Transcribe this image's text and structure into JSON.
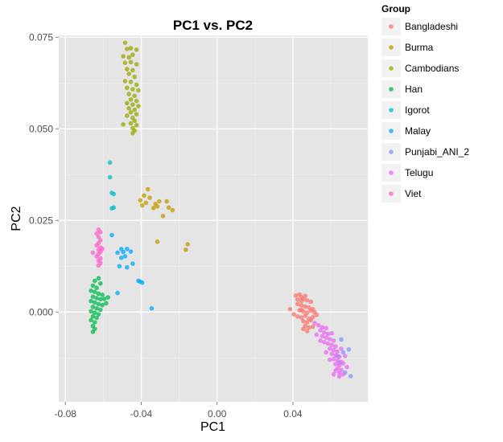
{
  "chart_data": {
    "type": "scatter",
    "title": "PC1 vs. PC2",
    "xlabel": "PC1",
    "ylabel": "PC2",
    "xlim": [
      -0.0835,
      0.0795
    ],
    "ylim": [
      -0.0245,
      0.0755
    ],
    "xticks": [
      -0.08,
      -0.04,
      0.0,
      0.04
    ],
    "xtick_labels": [
      "-0.08",
      "-0.04",
      "0.00",
      "0.04"
    ],
    "yticks": [
      0.0,
      0.025,
      0.05,
      0.075
    ],
    "ytick_labels": [
      "0.000",
      "0.025",
      "0.050",
      "0.075"
    ],
    "grid": true,
    "background": "#e5e5e5",
    "legend": {
      "title": "Group",
      "position": "right"
    },
    "series": [
      {
        "name": "Bangladeshi",
        "color": "#F8766D",
        "points": [
          [
            0.0415,
            0.0045
          ],
          [
            0.0435,
            0.0048
          ],
          [
            0.0445,
            0.0041
          ],
          [
            0.0465,
            0.0044
          ],
          [
            0.0425,
            0.0034
          ],
          [
            0.0445,
            0.003
          ],
          [
            0.0455,
            0.0036
          ],
          [
            0.0475,
            0.0032
          ],
          [
            0.0495,
            0.0028
          ],
          [
            0.0425,
            0.0022
          ],
          [
            0.0445,
            0.0018
          ],
          [
            0.0465,
            0.0015
          ],
          [
            0.0485,
            0.0012
          ],
          [
            0.0505,
            0.0008
          ],
          [
            0.0435,
            0.0005
          ],
          [
            0.0455,
            0.0002
          ],
          [
            0.0475,
            -0.0002
          ],
          [
            0.0495,
            0.0004
          ],
          [
            0.0515,
            -0.0001
          ],
          [
            0.0425,
            -0.0012
          ],
          [
            0.0445,
            -0.0015
          ],
          [
            0.0465,
            -0.001
          ],
          [
            0.0485,
            -0.0018
          ],
          [
            0.0505,
            -0.0014
          ],
          [
            0.0455,
            -0.0025
          ],
          [
            0.0475,
            -0.0028
          ],
          [
            0.0495,
            -0.0022
          ],
          [
            0.0465,
            -0.0038
          ],
          [
            0.0485,
            -0.0042
          ],
          [
            0.0475,
            -0.0052
          ],
          [
            0.0385,
            0.0008
          ],
          [
            0.0405,
            -0.0006
          ],
          [
            0.0505,
            -0.004
          ],
          [
            0.0525,
            -0.0008
          ],
          [
            0.0445,
            0.0006
          ],
          [
            0.0455,
            -0.0046
          ]
        ]
      },
      {
        "name": "Burma",
        "color": "#C49A00",
        "points": [
          [
            -0.0365,
            0.0335
          ],
          [
            -0.0385,
            0.0318
          ],
          [
            -0.0355,
            0.0312
          ],
          [
            -0.0405,
            0.0305
          ],
          [
            -0.0375,
            0.0298
          ],
          [
            -0.0325,
            0.0295
          ],
          [
            -0.0315,
            0.0288
          ],
          [
            -0.0305,
            0.0302
          ],
          [
            -0.0265,
            0.0302
          ],
          [
            -0.0255,
            0.0285
          ],
          [
            -0.0235,
            0.0278
          ],
          [
            -0.0395,
            0.0291
          ],
          [
            -0.0335,
            0.0284
          ],
          [
            -0.0315,
            0.0192
          ],
          [
            -0.0155,
            0.0185
          ],
          [
            -0.0165,
            0.017
          ],
          [
            -0.0285,
            0.0262
          ]
        ]
      },
      {
        "name": "Cambodians",
        "color": "#99A800",
        "points": [
          [
            -0.0485,
            0.0735
          ],
          [
            -0.0475,
            0.0718
          ],
          [
            -0.0455,
            0.072
          ],
          [
            -0.0425,
            0.0716
          ],
          [
            -0.0495,
            0.0698
          ],
          [
            -0.0465,
            0.0695
          ],
          [
            -0.0445,
            0.0702
          ],
          [
            -0.0485,
            0.068
          ],
          [
            -0.0455,
            0.0682
          ],
          [
            -0.0425,
            0.0676
          ],
          [
            -0.0475,
            0.0663
          ],
          [
            -0.0445,
            0.066
          ],
          [
            -0.0465,
            0.065
          ],
          [
            -0.0435,
            0.0642
          ],
          [
            -0.0485,
            0.063
          ],
          [
            -0.0455,
            0.0628
          ],
          [
            -0.0425,
            0.062
          ],
          [
            -0.0475,
            0.0612
          ],
          [
            -0.0445,
            0.0608
          ],
          [
            -0.0415,
            0.0605
          ],
          [
            -0.0465,
            0.0595
          ],
          [
            -0.0435,
            0.059
          ],
          [
            -0.0455,
            0.058
          ],
          [
            -0.0425,
            0.0576
          ],
          [
            -0.0475,
            0.057
          ],
          [
            -0.0445,
            0.0566
          ],
          [
            -0.0415,
            0.0562
          ],
          [
            -0.0465,
            0.0556
          ],
          [
            -0.0435,
            0.0552
          ],
          [
            -0.0455,
            0.0545
          ],
          [
            -0.0425,
            0.054
          ],
          [
            -0.0475,
            0.0536
          ],
          [
            -0.0445,
            0.053
          ],
          [
            -0.0435,
            0.0522
          ],
          [
            -0.0455,
            0.0515
          ],
          [
            -0.0425,
            0.051
          ],
          [
            -0.0445,
            0.0502
          ],
          [
            -0.0435,
            0.0495
          ],
          [
            -0.0445,
            0.0488
          ],
          [
            -0.0495,
            0.0512
          ]
        ]
      },
      {
        "name": "Han",
        "color": "#00BB4E",
        "points": [
          [
            -0.0625,
            0.0092
          ],
          [
            -0.0645,
            0.0085
          ],
          [
            -0.0615,
            0.0078
          ],
          [
            -0.0655,
            0.0072
          ],
          [
            -0.0635,
            0.0066
          ],
          [
            -0.0665,
            0.0058
          ],
          [
            -0.0645,
            0.0055
          ],
          [
            -0.0625,
            0.005
          ],
          [
            -0.0605,
            0.0047
          ],
          [
            -0.0655,
            0.0042
          ],
          [
            -0.0635,
            0.0038
          ],
          [
            -0.0615,
            0.0035
          ],
          [
            -0.0665,
            0.003
          ],
          [
            -0.0645,
            0.0026
          ],
          [
            -0.0625,
            0.0022
          ],
          [
            -0.0605,
            0.0019
          ],
          [
            -0.0655,
            0.0014
          ],
          [
            -0.0635,
            0.001
          ],
          [
            -0.0615,
            0.0006
          ],
          [
            -0.0665,
            0.0002
          ],
          [
            -0.0645,
            -0.0002
          ],
          [
            -0.0625,
            -0.0006
          ],
          [
            -0.0655,
            -0.0012
          ],
          [
            -0.0635,
            -0.0016
          ],
          [
            -0.0665,
            -0.0022
          ],
          [
            -0.0645,
            -0.0028
          ],
          [
            -0.0655,
            -0.0038
          ],
          [
            -0.0645,
            -0.0046
          ],
          [
            -0.0655,
            -0.0054
          ],
          [
            -0.0595,
            0.0036
          ],
          [
            -0.0575,
            0.004
          ],
          [
            -0.0585,
            0.0024
          ]
        ]
      },
      {
        "name": "Igorot",
        "color": "#00BFC4",
        "points": [
          [
            -0.0565,
            0.0408
          ],
          [
            -0.0565,
            0.0368
          ],
          [
            -0.0555,
            0.0325
          ],
          [
            -0.0545,
            0.0322
          ],
          [
            -0.0545,
            0.0285
          ],
          [
            -0.0555,
            0.0283
          ]
        ]
      },
      {
        "name": "Malay",
        "color": "#00A9FF",
        "points": [
          [
            -0.0555,
            0.021
          ],
          [
            -0.0505,
            0.0172
          ],
          [
            -0.0495,
            0.0164
          ],
          [
            -0.0525,
            0.0162
          ],
          [
            -0.0475,
            0.0172
          ],
          [
            -0.0455,
            0.0165
          ],
          [
            -0.0485,
            0.0152
          ],
          [
            -0.0505,
            0.0148
          ],
          [
            -0.0515,
            0.0125
          ],
          [
            -0.0475,
            0.0122
          ],
          [
            -0.0445,
            0.0132
          ],
          [
            -0.0415,
            0.0085
          ],
          [
            -0.0405,
            0.0083
          ],
          [
            -0.0525,
            0.0052
          ],
          [
            -0.0345,
            0.001
          ],
          [
            -0.0395,
            0.008
          ]
        ]
      },
      {
        "name": "Punjabi_ANI_2",
        "color": "#8494FF",
        "points": [
          [
            0.0655,
            -0.0075
          ],
          [
            0.0695,
            -0.0102
          ],
          [
            0.0665,
            -0.011
          ],
          [
            0.0705,
            -0.0175
          ],
          [
            0.0645,
            -0.0138
          ],
          [
            0.0675,
            -0.0165
          ],
          [
            0.0635,
            -0.012
          ]
        ]
      },
      {
        "name": "Telugu",
        "color": "#E76BF3",
        "points": [
          [
            0.0515,
            -0.003
          ],
          [
            0.0535,
            -0.0036
          ],
          [
            0.0555,
            -0.0042
          ],
          [
            0.0575,
            -0.0044
          ],
          [
            0.0545,
            -0.005
          ],
          [
            0.0565,
            -0.0056
          ],
          [
            0.0585,
            -0.006
          ],
          [
            0.0605,
            -0.0058
          ],
          [
            0.0555,
            -0.0066
          ],
          [
            0.0575,
            -0.007
          ],
          [
            0.0595,
            -0.0074
          ],
          [
            0.0615,
            -0.0078
          ],
          [
            0.0565,
            -0.0082
          ],
          [
            0.0585,
            -0.0086
          ],
          [
            0.0605,
            -0.009
          ],
          [
            0.0625,
            -0.0094
          ],
          [
            0.0595,
            -0.01
          ],
          [
            0.0615,
            -0.0104
          ],
          [
            0.0635,
            -0.0108
          ],
          [
            0.0655,
            -0.01
          ],
          [
            0.0605,
            -0.0114
          ],
          [
            0.0625,
            -0.0118
          ],
          [
            0.0645,
            -0.0122
          ],
          [
            0.0615,
            -0.0128
          ],
          [
            0.0635,
            -0.0132
          ],
          [
            0.0655,
            -0.0136
          ],
          [
            0.0625,
            -0.0142
          ],
          [
            0.0645,
            -0.0146
          ],
          [
            0.0665,
            -0.014
          ],
          [
            0.0635,
            -0.0154
          ],
          [
            0.0655,
            -0.0158
          ],
          [
            0.0645,
            -0.0166
          ],
          [
            0.0625,
            -0.016
          ],
          [
            0.0665,
            -0.017
          ],
          [
            0.0685,
            -0.015
          ],
          [
            0.0595,
            -0.013
          ],
          [
            0.0575,
            -0.011
          ],
          [
            0.0545,
            -0.0078
          ],
          [
            0.0525,
            -0.0062
          ],
          [
            0.0675,
            -0.012
          ],
          [
            0.0615,
            -0.017
          ],
          [
            0.0645,
            -0.0176
          ]
        ]
      },
      {
        "name": "Viet",
        "color": "#FF61CC",
        "points": [
          [
            -0.0625,
            0.0225
          ],
          [
            -0.0615,
            0.0218
          ],
          [
            -0.0635,
            0.0214
          ],
          [
            -0.0625,
            0.0205
          ],
          [
            -0.0615,
            0.0196
          ],
          [
            -0.0625,
            0.0188
          ],
          [
            -0.0635,
            0.0182
          ],
          [
            -0.0615,
            0.0176
          ],
          [
            -0.0625,
            0.017
          ],
          [
            -0.0615,
            0.0164
          ],
          [
            -0.0625,
            0.0158
          ],
          [
            -0.0635,
            0.0152
          ],
          [
            -0.0615,
            0.0146
          ],
          [
            -0.0625,
            0.014
          ],
          [
            -0.0615,
            0.0134
          ],
          [
            -0.0625,
            0.0127
          ],
          [
            -0.0655,
            0.0162
          ],
          [
            -0.0605,
            0.0172
          ]
        ]
      }
    ]
  }
}
